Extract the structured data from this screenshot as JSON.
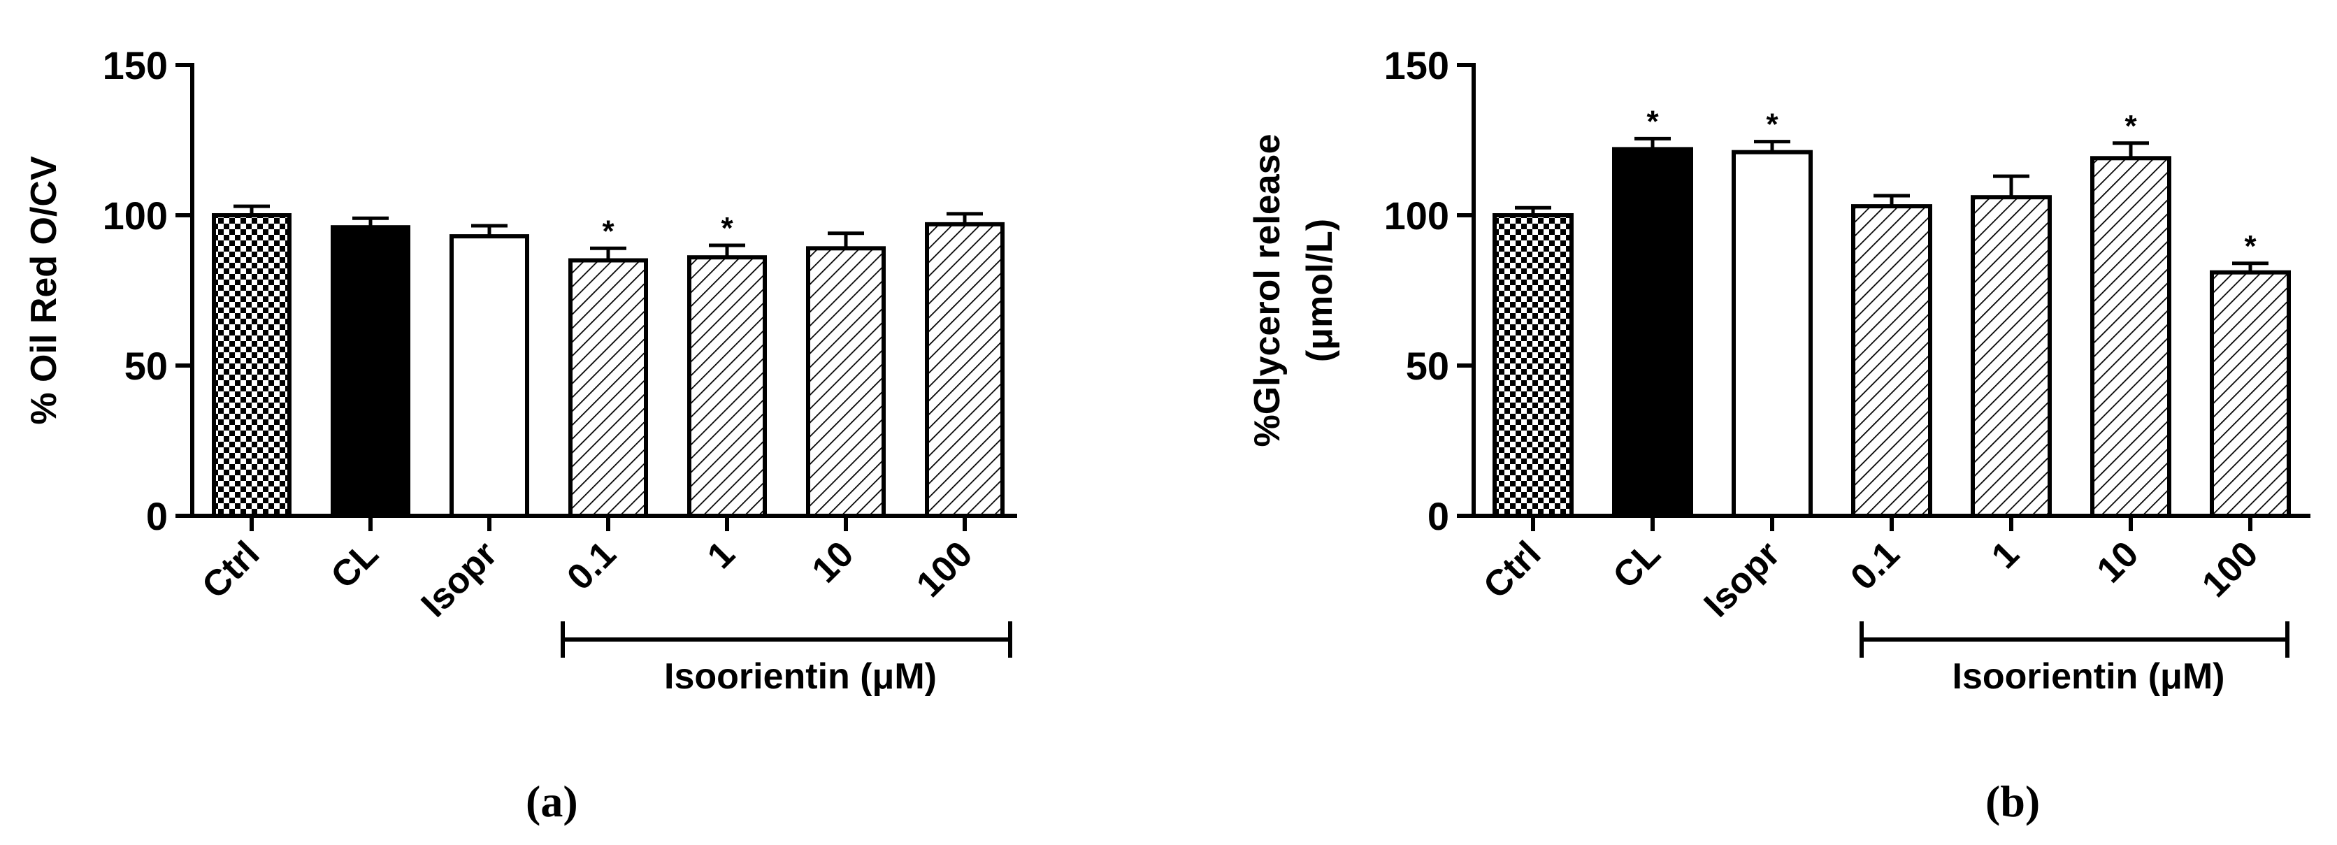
{
  "chart_data": [
    {
      "type": "bar",
      "panel_label": "(a)",
      "ylabel": "% Oil Red O/CV",
      "ylim": [
        0,
        150
      ],
      "yticks": [
        "0",
        "50",
        "100",
        "150"
      ],
      "categories": [
        "Ctrl",
        "CL",
        "Isopr",
        "0.1",
        "1",
        "10",
        "100"
      ],
      "values": [
        100,
        96,
        93,
        85,
        86,
        89,
        97
      ],
      "errors": [
        3,
        3,
        3.5,
        4,
        4,
        5,
        3.5
      ],
      "significance": [
        "",
        "",
        "",
        "*",
        "*",
        "",
        ""
      ],
      "fills": [
        "checker",
        "black",
        "white",
        "hatch",
        "hatch",
        "hatch",
        "hatch"
      ],
      "group_label": "Isoorientin (μM)",
      "group_range": [
        3,
        6
      ]
    },
    {
      "type": "bar",
      "panel_label": "(b)",
      "ylabel": "%Glycerol release",
      "ylabel2": "(μmol/L)",
      "ylim": [
        0,
        150
      ],
      "yticks": [
        "0",
        "50",
        "100",
        "150"
      ],
      "categories": [
        "Ctrl",
        "CL",
        "Isopr",
        "0.1",
        "1",
        "10",
        "100"
      ],
      "values": [
        100,
        122,
        121,
        103,
        106,
        119,
        81
      ],
      "errors": [
        2.5,
        3.5,
        3.5,
        3.5,
        7,
        5,
        3
      ],
      "significance": [
        "",
        "*",
        "*",
        "",
        "",
        "*",
        "*"
      ],
      "fills": [
        "checker",
        "black",
        "white",
        "hatch",
        "hatch",
        "hatch",
        "hatch"
      ],
      "group_label": "Isoorientin (μM)",
      "group_range": [
        3,
        6
      ]
    }
  ]
}
